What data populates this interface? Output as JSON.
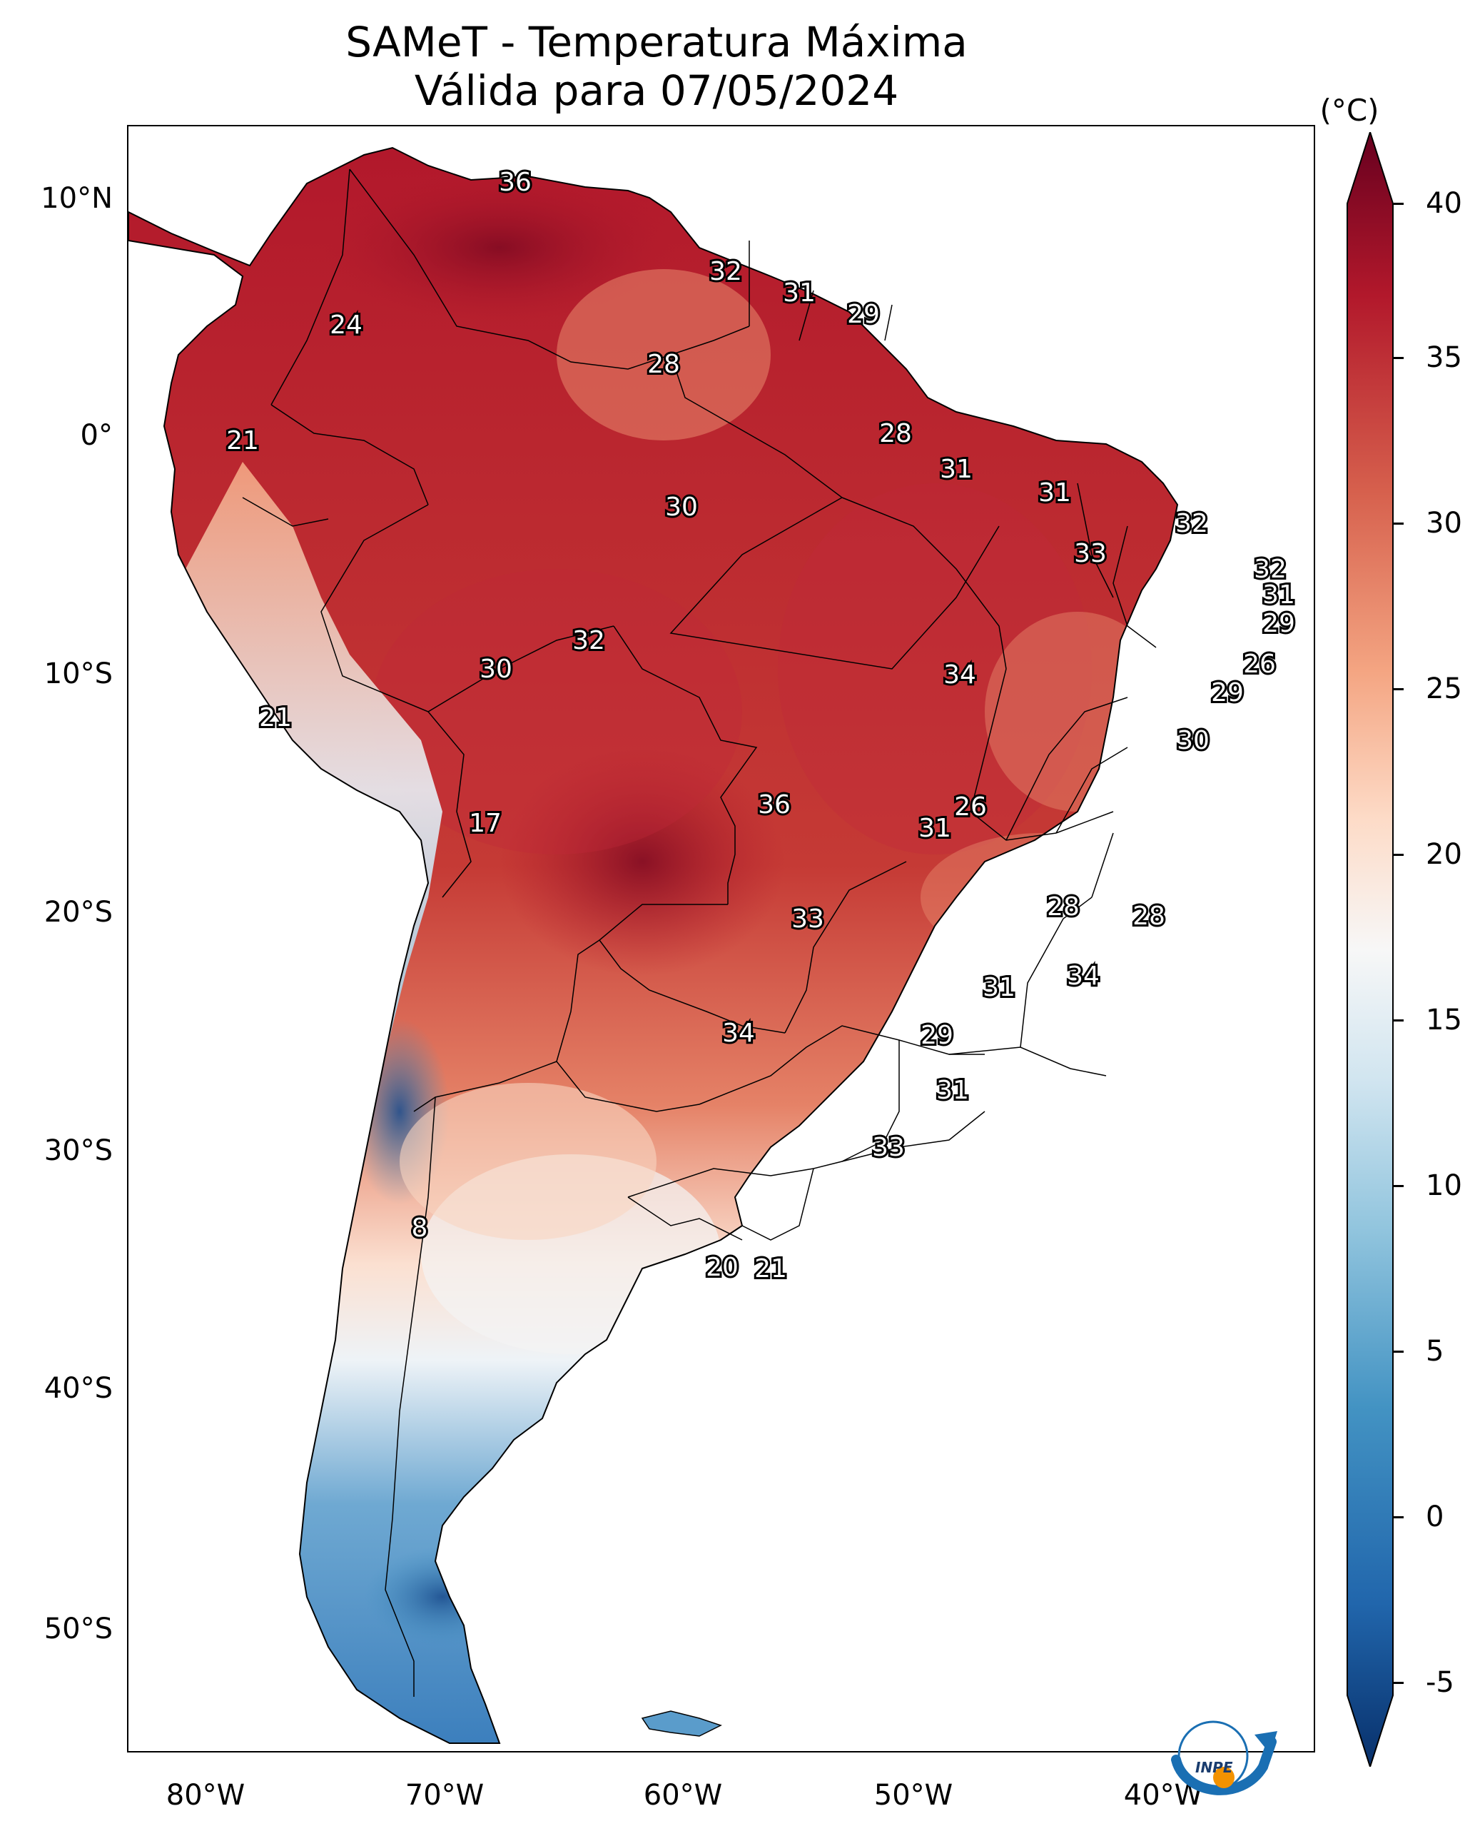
{
  "title": {
    "line1": "SAMeT - Temperatura Máxima",
    "line2": "Válida para 07/05/2024"
  },
  "axes": {
    "y_labels": [
      "10°N",
      "0°",
      "10°S",
      "20°S",
      "30°S",
      "40°S",
      "50°S"
    ],
    "x_labels": [
      "80°W",
      "70°W",
      "60°W",
      "50°W",
      "40°W"
    ]
  },
  "colorbar": {
    "unit": "(°C)",
    "ticks": [
      "40",
      "35",
      "30",
      "25",
      "20",
      "15",
      "10",
      "5",
      "0",
      "-5"
    ],
    "range": [
      -5,
      40
    ],
    "colors": [
      "#08306b",
      "#2166ac",
      "#4393c3",
      "#92c5de",
      "#d1e5f0",
      "#f7f7f7",
      "#fddbc7",
      "#f4a582",
      "#d6604d",
      "#b2182b",
      "#67001f"
    ]
  },
  "value_labels": [
    {
      "text": "36"
    },
    {
      "text": "32"
    },
    {
      "text": "31"
    },
    {
      "text": "29"
    },
    {
      "text": "24"
    },
    {
      "text": "28"
    },
    {
      "text": "21"
    },
    {
      "text": "28"
    },
    {
      "text": "31"
    },
    {
      "text": "31"
    },
    {
      "text": "30"
    },
    {
      "text": "32"
    },
    {
      "text": "33"
    },
    {
      "text": "32"
    },
    {
      "text": "31"
    },
    {
      "text": "29"
    },
    {
      "text": "32"
    },
    {
      "text": "26"
    },
    {
      "text": "30"
    },
    {
      "text": "34"
    },
    {
      "text": "29"
    },
    {
      "text": "21"
    },
    {
      "text": "30"
    },
    {
      "text": "36"
    },
    {
      "text": "26"
    },
    {
      "text": "17"
    },
    {
      "text": "31"
    },
    {
      "text": "28"
    },
    {
      "text": "28"
    },
    {
      "text": "33"
    },
    {
      "text": "34"
    },
    {
      "text": "31"
    },
    {
      "text": "34"
    },
    {
      "text": "29"
    },
    {
      "text": "31"
    },
    {
      "text": "33"
    },
    {
      "text": "8"
    },
    {
      "text": "20"
    },
    {
      "text": "21"
    }
  ],
  "logo": {
    "text": "INPE"
  }
}
